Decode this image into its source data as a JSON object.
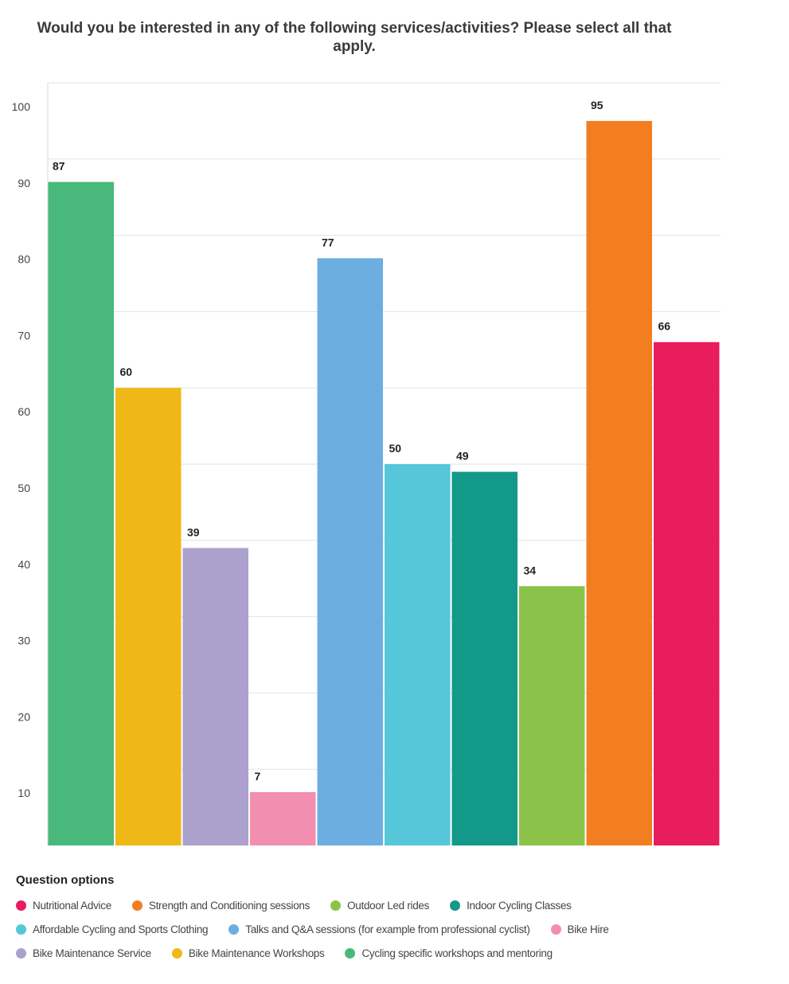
{
  "chart_data": {
    "type": "bar",
    "title": "Would you be interested in any of the following services/activities? Please select all that apply.",
    "categories": [
      "Cycling specific workshops and mentoring",
      "Bike Maintenance Workshops",
      "Bike Maintenance Service",
      "Bike Hire",
      "Talks and Q&A sessions (for example from professional cyclist)",
      "Affordable Cycling and Sports Clothing",
      "Indoor Cycling Classes",
      "Outdoor Led rides",
      "Strength and Conditioning sessions",
      "Nutritional Advice"
    ],
    "values": [
      87,
      60,
      39,
      7,
      77,
      50,
      49,
      34,
      95,
      66
    ],
    "colors": [
      "#48b97b",
      "#f0b816",
      "#aba1cc",
      "#f28eb0",
      "#6caee0",
      "#56c6d9",
      "#13998a",
      "#8bc34a",
      "#f37e22",
      "#e91c5d"
    ],
    "yticks": [
      10,
      20,
      30,
      40,
      50,
      60,
      70,
      80,
      90,
      100
    ],
    "ylim": [
      0,
      100
    ],
    "grid": true,
    "legend_title": "Question options",
    "legend_placement": "bottom",
    "legend_rows": [
      [
        {
          "label": "Nutritional Advice",
          "color": "#e91c5d"
        },
        {
          "label": "Strength and Conditioning sessions",
          "color": "#f37e22"
        },
        {
          "label": "Outdoor Led rides",
          "color": "#8bc34a"
        },
        {
          "label": "Indoor Cycling Classes",
          "color": "#13998a"
        }
      ],
      [
        {
          "label": "Affordable Cycling and Sports Clothing",
          "color": "#56c6d9"
        },
        {
          "label": "Talks and Q&A sessions (for example from professional cyclist)",
          "color": "#6caee0"
        },
        {
          "label": "Bike Hire",
          "color": "#f28eb0"
        }
      ],
      [
        {
          "label": "Bike Maintenance Service",
          "color": "#aba1cc"
        },
        {
          "label": "Bike Maintenance Workshops",
          "color": "#f0b816"
        },
        {
          "label": "Cycling specific workshops and mentoring",
          "color": "#48b97b"
        }
      ]
    ]
  }
}
